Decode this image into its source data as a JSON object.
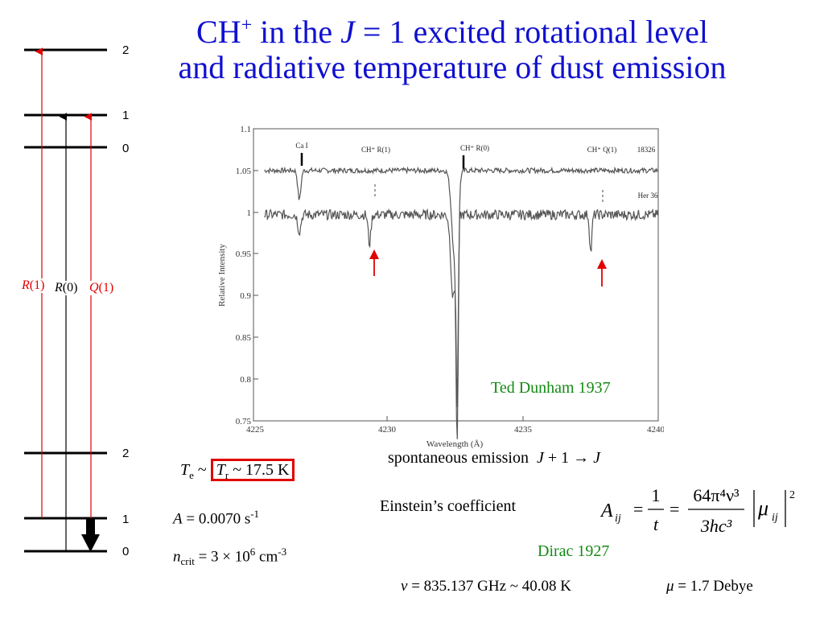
{
  "title": {
    "pre": "CH",
    "sup": "+",
    "mid": " in the ",
    "J": "J",
    "post": " = 1 excited rotational level",
    "line2": "and radiative temperature of dust emission"
  },
  "levels": {
    "upper": [
      "2",
      "1",
      "0"
    ],
    "lower": [
      "2",
      "1",
      "0"
    ]
  },
  "transitions": [
    {
      "italic": "R",
      "rest": "(1)",
      "color": "#e00000"
    },
    {
      "italic": "R",
      "rest": "(0)",
      "color": "#000000"
    },
    {
      "italic": "Q",
      "rest": "(1)",
      "color": "#e00000"
    }
  ],
  "spectrum": {
    "ylabel": "Relative Intensity",
    "xlabel": "Wavelength (Å)",
    "yticks": [
      "1.1",
      "1.05",
      "1",
      "0.95",
      "0.9",
      "0.85",
      "0.8",
      "0.75"
    ],
    "xticks": [
      "4225",
      "4230",
      "4235",
      "4240"
    ],
    "annot": {
      "cai": "Ca I",
      "r1": "CH⁺ R(1)",
      "r0": "CH⁺ R(0)",
      "q1": "CH⁺ Q(1)",
      "star1": "18326",
      "star2": "Her 36"
    },
    "credit": "Ted Dunham 1937"
  },
  "spontaneous": {
    "text": "spontaneous emission",
    "expr_J": "J",
    "expr_rest": " + 1 → ",
    "expr_J2": "J"
  },
  "temperature": {
    "Te": "T",
    "Te_sub": "e",
    "tilde": " ~ ",
    "Tr": "T",
    "Tr_sub": "r",
    "value": " ~ 17.5 K"
  },
  "einstein": {
    "label": "Einstein’s coefficient",
    "A": "A",
    "A_sub": "ij",
    "num1": "1",
    "den1": "t",
    "num2": "64π⁴ν³",
    "den2": "3hc³",
    "mu": "μ",
    "mu_sub": "ij",
    "exp": "2"
  },
  "dirac": "Dirac 1927",
  "A_value": {
    "sym": "A",
    "val": " = 0.0070 s",
    "sup": "-1"
  },
  "ncrit": {
    "sym": "n",
    "sub": "crit",
    "val": " = 3 × 10",
    "sup1": "6",
    "unit": " cm",
    "sup2": "-3"
  },
  "freq": {
    "sym": "ν",
    "val": " = 835.137 GHz ~ 40.08 K"
  },
  "dipole": {
    "sym": "μ",
    "val": " = 1.7 Debye"
  }
}
